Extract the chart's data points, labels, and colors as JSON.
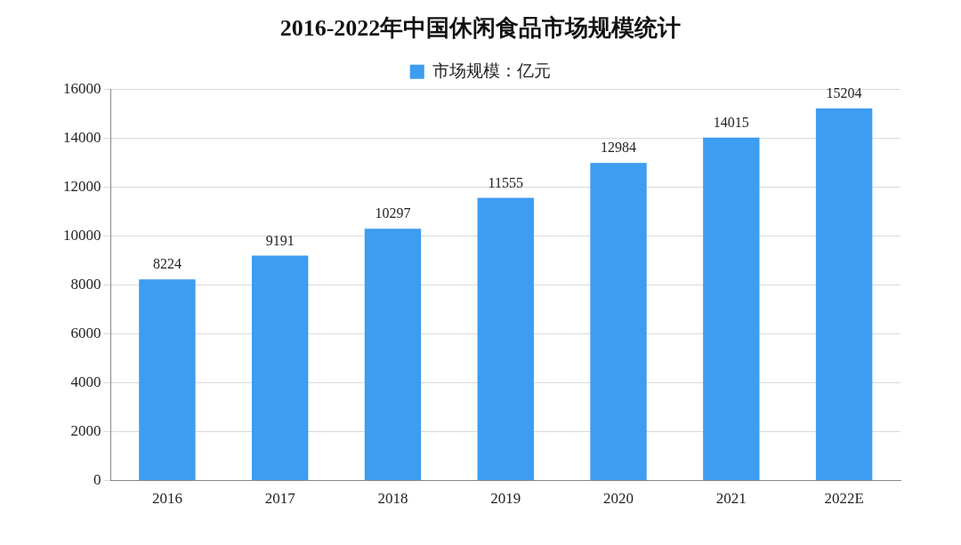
{
  "chart_data": {
    "type": "bar",
    "title": "2016-2022年中国休闲食品市场规模统计",
    "categories": [
      "2016",
      "2017",
      "2018",
      "2019",
      "2020",
      "2021",
      "2022E"
    ],
    "series": [
      {
        "name": "市场规模：亿元",
        "color": "#3d9df0",
        "values": [
          8224,
          9191,
          10297,
          11555,
          12984,
          14015,
          15204
        ]
      }
    ],
    "ylim": [
      0,
      16000
    ],
    "yticks": [
      0,
      2000,
      4000,
      6000,
      8000,
      10000,
      12000,
      14000,
      16000
    ],
    "grid": "y",
    "legend": "top",
    "data_labels": true
  }
}
